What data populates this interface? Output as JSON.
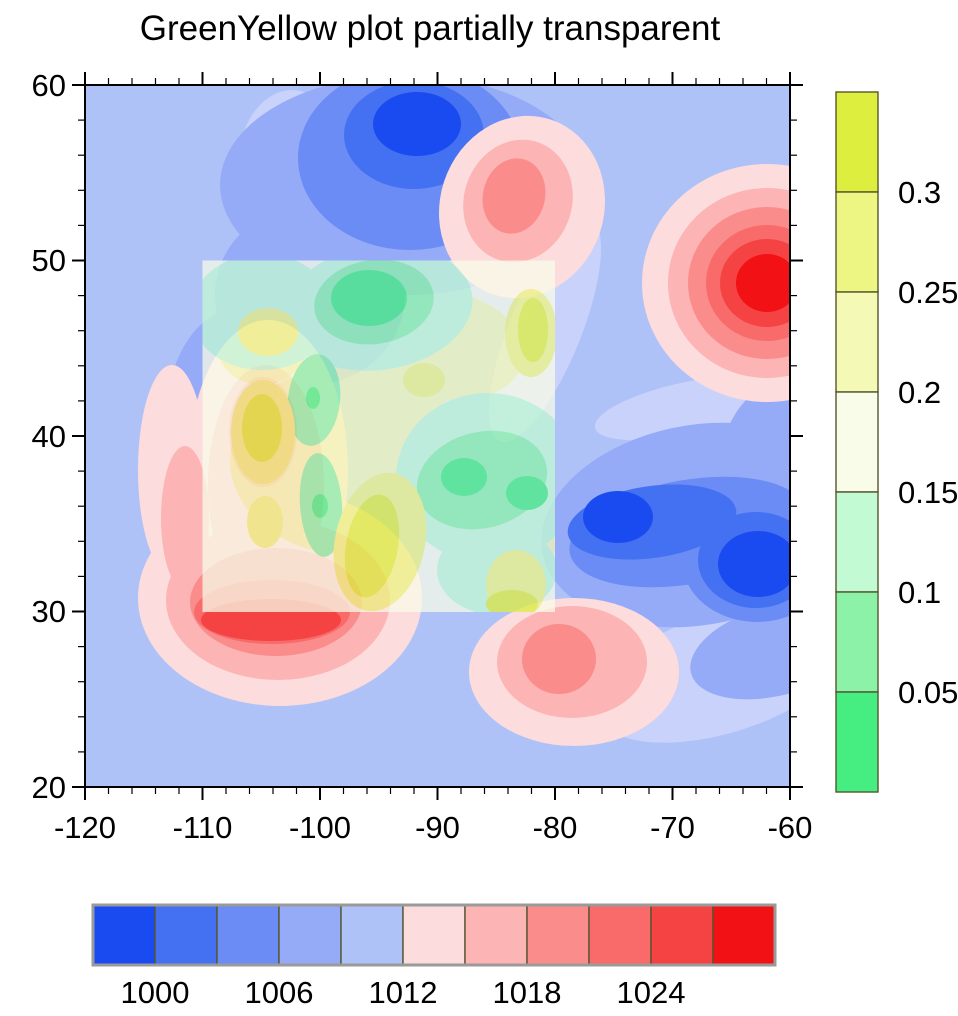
{
  "title": "GreenYellow plot partially transparent",
  "axes": {
    "x": {
      "tick_labels": [
        "-120",
        "-110",
        "-100",
        "-90",
        "-80",
        "-70",
        "-60"
      ],
      "range": [
        -120,
        -60
      ],
      "minor_step": 2
    },
    "y": {
      "tick_labels": [
        "60",
        "50",
        "40",
        "30",
        "20"
      ],
      "range": [
        20,
        60
      ],
      "minor_step": 2
    }
  },
  "colorbars": {
    "right": {
      "orientation": "vertical",
      "labels": [
        "0.3",
        "0.25",
        "0.2",
        "0.15",
        "0.1",
        "0.05"
      ],
      "colors_top_to_bottom": [
        "#DDEE3E",
        "#EDF583",
        "#F4FAB6",
        "#F8FCE8",
        "#C2FAD4",
        "#8BF2A8",
        "#46EE82"
      ]
    },
    "bottom": {
      "orientation": "horizontal",
      "labels": [
        "1000",
        "1006",
        "1012",
        "1018",
        "1024"
      ],
      "colors_left_to_right": [
        "#1A4BF0",
        "#4470F2",
        "#6B8CF5",
        "#95ABF7",
        "#AFC2F8",
        "#FCDCDC",
        "#FCB4B4",
        "#FA8C8C",
        "#F96A6A",
        "#F54242",
        "#F21114"
      ]
    }
  },
  "chart_data": {
    "type": "heatmap",
    "title": "GreenYellow plot partially transparent",
    "xlabel": "",
    "ylabel": "",
    "x_range": [
      -120,
      -60
    ],
    "y_range": [
      20,
      60
    ],
    "base_field": {
      "description": "opaque blue-red filled contour field",
      "contour_levels": [
        1000,
        1003,
        1006,
        1009,
        1012,
        1015,
        1018,
        1021,
        1024,
        1027
      ],
      "labeled_levels": [
        1000,
        1006,
        1012,
        1018,
        1024
      ],
      "palette": [
        "#1A4BF0",
        "#4470F2",
        "#6B8CF5",
        "#95ABF7",
        "#AFC2F8",
        "#FCDCDC",
        "#FCB4B4",
        "#FA8C8C",
        "#F96A6A",
        "#F54242",
        "#F21114"
      ],
      "features": [
        {
          "type": "low",
          "x": -92,
          "y": 57.8
        },
        {
          "type": "high",
          "x": -83,
          "y": 53.7
        },
        {
          "type": "high",
          "x": -62.5,
          "y": 48.5
        },
        {
          "type": "high",
          "x": -104.5,
          "y": 29.5
        },
        {
          "type": "high",
          "x": -79.5,
          "y": 27.2
        },
        {
          "type": "low",
          "x": -74.7,
          "y": 35.3
        },
        {
          "type": "low",
          "x": -63,
          "y": 32.5
        }
      ]
    },
    "overlay_field": {
      "description": "partially transparent GreenYellow filled contour overlay",
      "extent": {
        "x": [
          -110,
          -80
        ],
        "y": [
          30,
          50
        ]
      },
      "contour_levels": [
        0.05,
        0.1,
        0.15,
        0.2,
        0.25,
        0.3
      ],
      "palette": [
        "#46EE82",
        "#8BF2A8",
        "#C2FAD4",
        "#F8FCE8",
        "#F4FAB6",
        "#EDF583",
        "#DDEE3E"
      ],
      "partially_transparent": true,
      "features": [
        {
          "type": "low",
          "x": -94.5,
          "y": 47.5
        },
        {
          "type": "low",
          "x": -87.7,
          "y": 37.7
        },
        {
          "type": "low",
          "x": -82.3,
          "y": 36.7
        },
        {
          "type": "high",
          "x": -95.5,
          "y": 33.5
        },
        {
          "type": "high",
          "x": -104.8,
          "y": 40.5
        },
        {
          "type": "high",
          "x": -81,
          "y": 46.5
        },
        {
          "type": "high",
          "x": -81.5,
          "y": 31
        }
      ]
    }
  }
}
